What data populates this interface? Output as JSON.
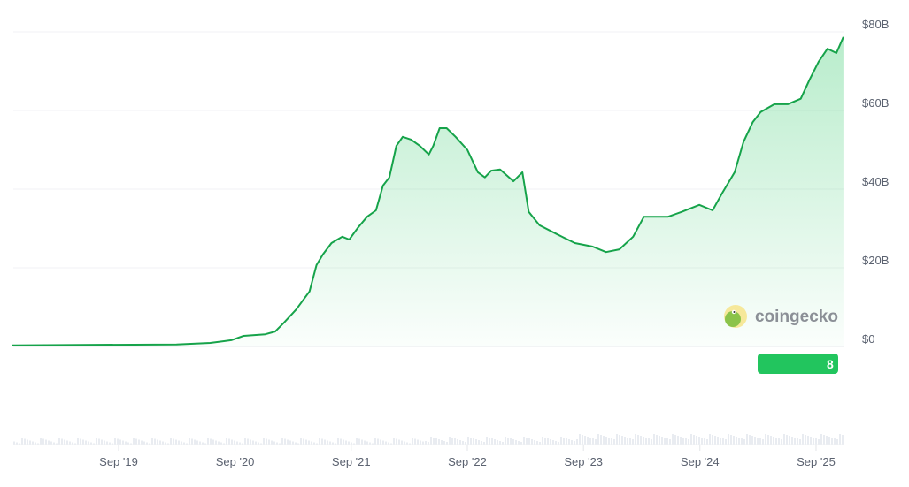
{
  "chart_data": {
    "type": "area",
    "title": "",
    "xlabel": "",
    "ylabel": "",
    "y_unit": "USD billions",
    "ylim": [
      0,
      80
    ],
    "y_ticks": [
      {
        "value": 0,
        "label": "$0"
      },
      {
        "value": 20,
        "label": "$20B"
      },
      {
        "value": 40,
        "label": "$40B"
      },
      {
        "value": 60,
        "label": "$60B"
      },
      {
        "value": 80,
        "label": "$80B"
      }
    ],
    "x_ticks": [
      {
        "date": "2019-09-01",
        "label": "Sep '19"
      },
      {
        "date": "2020-09-01",
        "label": "Sep '20"
      },
      {
        "date": "2021-09-01",
        "label": "Sep '21"
      },
      {
        "date": "2022-09-01",
        "label": "Sep '22"
      },
      {
        "date": "2023-09-01",
        "label": "Sep '23"
      },
      {
        "date": "2024-09-01",
        "label": "Sep '24"
      },
      {
        "date": "2025-09-01",
        "label": "Sep '25"
      }
    ],
    "grid": "horizontal",
    "y_axis_position": "right",
    "line_color": "#16a34a",
    "fill_color": "#22c55e",
    "series": [
      {
        "x": [
          "2018-10-01",
          "2019-05-01",
          "2020-03-01",
          "2020-06-15",
          "2020-08-20",
          "2020-09-28",
          "2020-12-05",
          "2021-01-05",
          "2021-02-01",
          "2021-03-12",
          "2021-04-23",
          "2021-05-15",
          "2021-06-04",
          "2021-07-01",
          "2021-08-04",
          "2021-08-26",
          "2021-09-23",
          "2021-10-21",
          "2021-11-18",
          "2021-12-10",
          "2021-12-30",
          "2022-01-21",
          "2022-02-10",
          "2022-03-08",
          "2022-04-05",
          "2022-05-03",
          "2022-05-17",
          "2022-06-06",
          "2022-06-28",
          "2022-07-26",
          "2022-09-01",
          "2022-10-04",
          "2022-10-26",
          "2022-11-15",
          "2022-12-13",
          "2023-01-24",
          "2023-02-21",
          "2023-03-13",
          "2023-04-16",
          "2023-06-11",
          "2023-08-05",
          "2023-09-30",
          "2023-11-11",
          "2023-12-23",
          "2024-02-04",
          "2024-03-09",
          "2024-04-12",
          "2024-05-24",
          "2024-07-05",
          "2024-08-30",
          "2024-10-11",
          "2024-11-08",
          "2024-12-19",
          "2025-01-16",
          "2025-02-14",
          "2025-03-11",
          "2025-04-23",
          "2025-06-04",
          "2025-07-15",
          "2025-08-12",
          "2025-09-09",
          "2025-10-07",
          "2025-11-04",
          "2025-11-26"
        ],
        "y": [
          0.3,
          0.4,
          0.5,
          0.9,
          1.6,
          2.7,
          3.1,
          3.8,
          6.0,
          9.4,
          14.0,
          20.7,
          23.4,
          26.3,
          27.9,
          27.2,
          30.3,
          33.0,
          34.6,
          40.9,
          43.0,
          51.0,
          53.3,
          52.6,
          51.0,
          48.8,
          51.0,
          55.5,
          55.5,
          53.3,
          50.0,
          44.3,
          43.0,
          44.7,
          45.0,
          42.0,
          44.3,
          34.2,
          30.8,
          28.5,
          26.3,
          25.4,
          24.0,
          24.7,
          27.9,
          33.0,
          33.0,
          33.0,
          34.2,
          36.0,
          34.6,
          38.7,
          44.3,
          52.0,
          57.0,
          59.6,
          61.6,
          61.6,
          63.0,
          67.9,
          72.4,
          75.7,
          74.6,
          78.7
        ]
      }
    ]
  },
  "watermark": {
    "text": "coingecko",
    "icon": "gecko-logo-icon"
  },
  "current_value_badge": {
    "color": "#22c55e"
  }
}
